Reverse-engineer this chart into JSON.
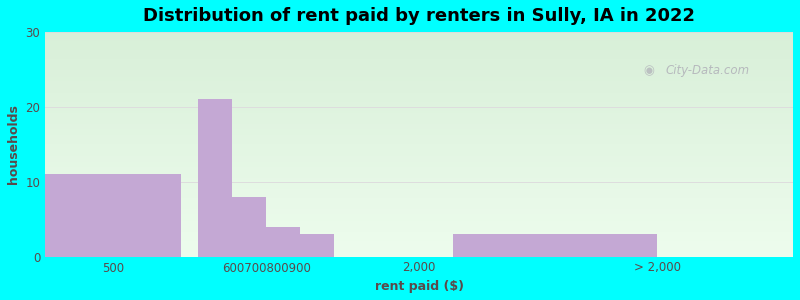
{
  "title": "Distribution of rent paid by renters in Sully, IA in 2022",
  "xlabel": "rent paid ($)",
  "ylabel": "households",
  "bar_color": "#c4a8d4",
  "ylim": [
    0,
    30
  ],
  "yticks": [
    0,
    10,
    20,
    30
  ],
  "background_outer": "#00FFFF",
  "title_fontsize": 13,
  "axis_label_fontsize": 9,
  "tick_label_fontsize": 8.5,
  "text_color": "#5a4a4a",
  "watermark": "City-Data.com",
  "bar_positions": [
    1.0,
    2.5,
    3.0,
    3.5,
    4.0,
    7.5
  ],
  "bar_widths": [
    2.0,
    0.5,
    0.5,
    0.5,
    0.5,
    3.0
  ],
  "bar_heights": [
    11,
    21,
    8,
    4,
    3,
    3
  ],
  "xlim": [
    0.0,
    11.0
  ],
  "xtick_positions": [
    1.0,
    3.25,
    5.5,
    9.0
  ],
  "xtick_labels": [
    "500",
    "600700800900",
    "2,000",
    "> 2,000"
  ],
  "grid_color": "#dddddd",
  "grad_top": "#d8efd8",
  "grad_bottom": "#edfced"
}
